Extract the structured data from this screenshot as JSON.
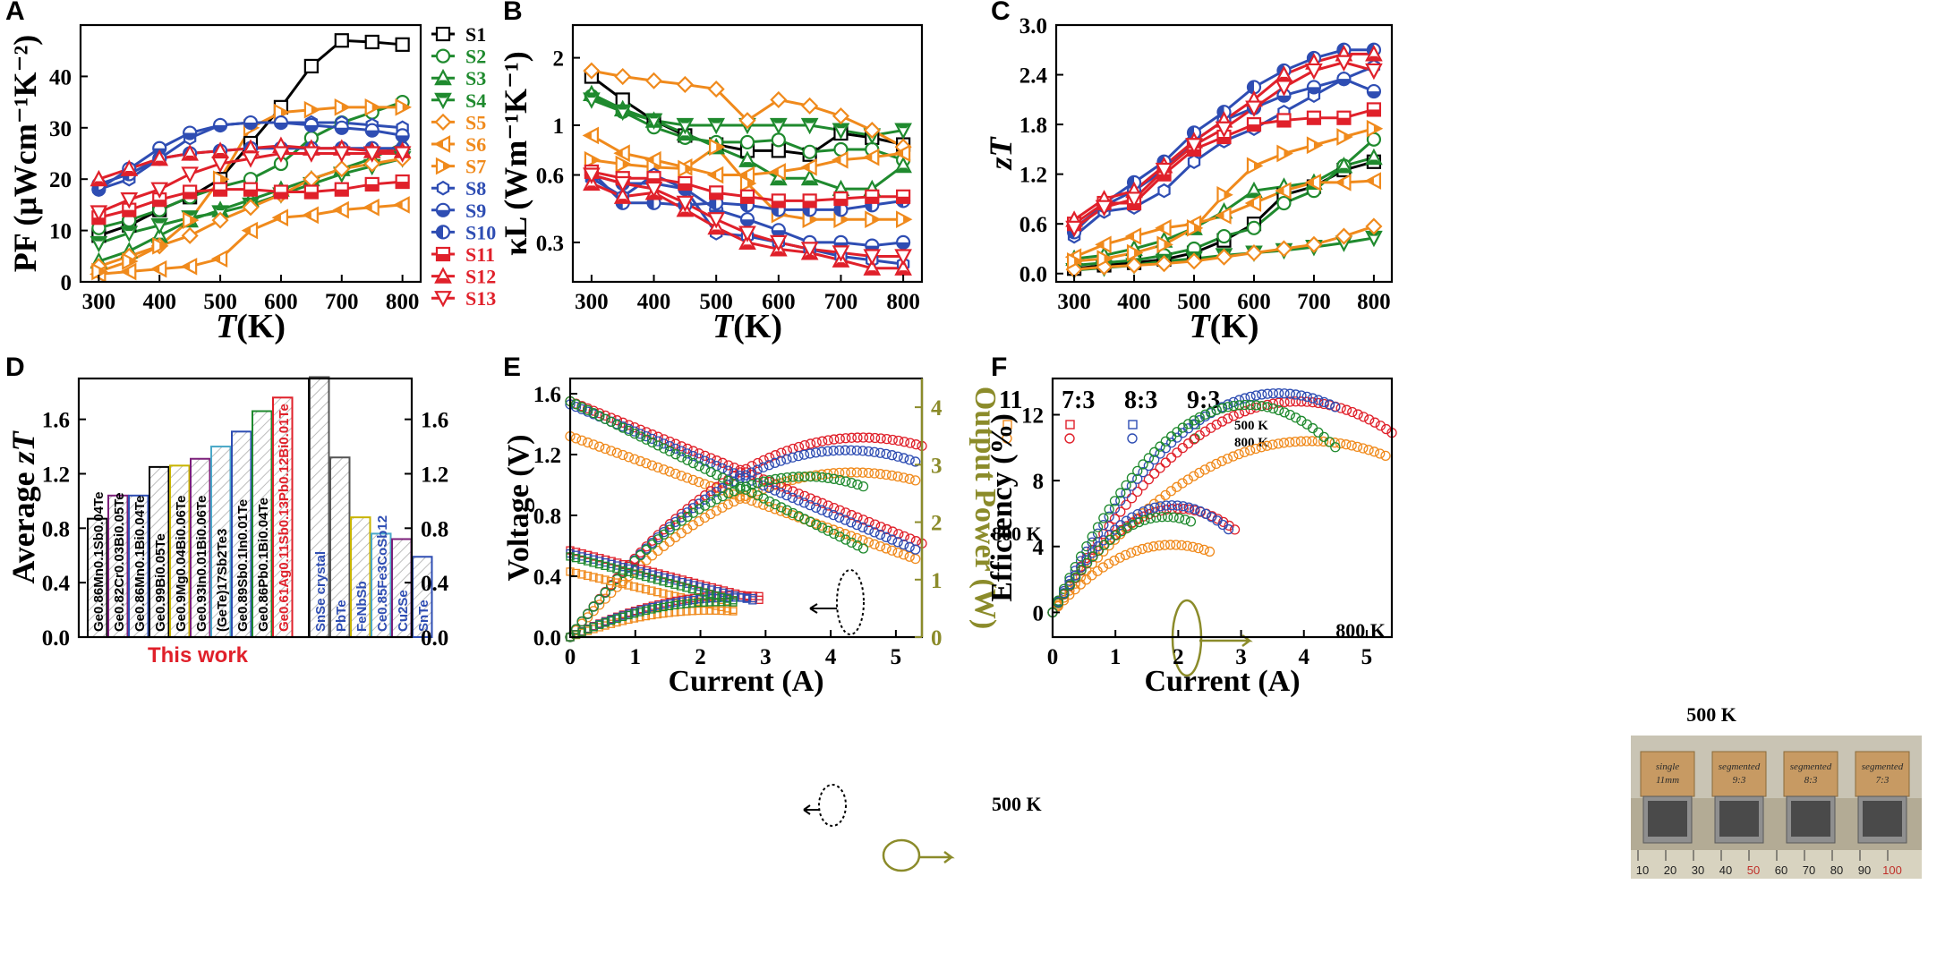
{
  "colors": {
    "S1": "#000000",
    "S2": "#1f8a2e",
    "S3": "#1f8a2e",
    "S4": "#1f8a2e",
    "S5": "#f08a1c",
    "S6": "#f08a1c",
    "S7": "#f08a1c",
    "S8": "#2e4db3",
    "S9": "#2e4db3",
    "S10": "#2e4db3",
    "S11": "#e0202a",
    "S12": "#e0202a",
    "S13": "#e0202a",
    "olive": "#8b8b2a",
    "gray": "#555555"
  },
  "marker_icons": {
    "S1": "square-open",
    "S2": "circle-open",
    "S3": "triangle-up-half",
    "S4": "triangle-down-half",
    "S5": "diamond-open",
    "S6": "triangle-left-half",
    "S7": "triangle-right-half",
    "S8": "hexagon-open",
    "S9": "circle-half",
    "S10": "circle-left-half",
    "S11": "square-half",
    "S12": "triangle-up-half",
    "S13": "triangle-down-open"
  },
  "chart_data": [
    {
      "panel": "A",
      "type": "line",
      "xlabel_italic": "T",
      "xlabel_unit": "(K)",
      "ylabel": "PF (μWcm⁻¹K⁻²)",
      "xlim": [
        270,
        830
      ],
      "ylim": [
        0,
        50
      ],
      "xticks": [
        300,
        400,
        500,
        600,
        700,
        800
      ],
      "yticks": [
        0,
        10,
        20,
        30,
        40
      ],
      "x": [
        300,
        350,
        400,
        450,
        500,
        550,
        600,
        650,
        700,
        750,
        800
      ],
      "legend": [
        "S1",
        "S2",
        "S3",
        "S4",
        "S5",
        "S6",
        "S7",
        "S8",
        "S9",
        "S10",
        "S11",
        "S12",
        "S13"
      ],
      "series": [
        {
          "name": "S1",
          "values": [
            9,
            11,
            14,
            16.5,
            20,
            27,
            34,
            42,
            47,
            46.7,
            46.2
          ]
        },
        {
          "name": "S2",
          "values": [
            10.5,
            12,
            14,
            16.5,
            18.5,
            20,
            23,
            28,
            31,
            33,
            35
          ]
        },
        {
          "name": "S3",
          "values": [
            4,
            6,
            9,
            12,
            14,
            16,
            18,
            20,
            22,
            24,
            27
          ]
        },
        {
          "name": "S4",
          "values": [
            7.5,
            9.5,
            11,
            12.5,
            13.5,
            15,
            17,
            19,
            21,
            22.5,
            24
          ]
        },
        {
          "name": "S5",
          "values": [
            3,
            5,
            7,
            9,
            12,
            14.5,
            17,
            20,
            22,
            23,
            24
          ]
        },
        {
          "name": "S6",
          "values": [
            1.5,
            2,
            2.5,
            3,
            4.5,
            10,
            12.5,
            13,
            14,
            14.5,
            15
          ]
        },
        {
          "name": "S7",
          "values": [
            2,
            4,
            7,
            12,
            20,
            30,
            33,
            33.5,
            34,
            34,
            34
          ]
        },
        {
          "name": "S8",
          "values": [
            18,
            20,
            24,
            28,
            30.5,
            31,
            31,
            31,
            31,
            30.5,
            30
          ]
        },
        {
          "name": "S9",
          "values": [
            18,
            22,
            26,
            29,
            30.5,
            31,
            31,
            30.5,
            30,
            29.5,
            28.5
          ]
        },
        {
          "name": "S10",
          "values": [
            19,
            21,
            24,
            25,
            25.5,
            26,
            26,
            26,
            26,
            26,
            26
          ]
        },
        {
          "name": "S11",
          "values": [
            12.5,
            14,
            16,
            17.5,
            18,
            18,
            17.5,
            17.5,
            18,
            19,
            19.5
          ]
        },
        {
          "name": "S12",
          "values": [
            20,
            22,
            24,
            25,
            25.5,
            26,
            26.5,
            26,
            26,
            25.5,
            25.5
          ]
        },
        {
          "name": "S13",
          "values": [
            13.5,
            16,
            18,
            21,
            23,
            24,
            25,
            25,
            25,
            25,
            25
          ]
        }
      ]
    },
    {
      "panel": "B",
      "type": "line",
      "xlabel_italic": "T",
      "xlabel_unit": "(K)",
      "ylabel": "κL (Wm⁻¹K⁻¹)",
      "yscale": "log",
      "xlim": [
        270,
        830
      ],
      "ylim": [
        0.2,
        2.8
      ],
      "xticks": [
        300,
        400,
        500,
        600,
        700,
        800
      ],
      "yticks": [
        0.3,
        0.6,
        1,
        2
      ],
      "x": [
        300,
        350,
        400,
        450,
        500,
        550,
        600,
        650,
        700,
        750,
        800
      ],
      "series": [
        {
          "name": "S1",
          "values": [
            1.65,
            1.3,
            1.05,
            0.9,
            0.82,
            0.77,
            0.77,
            0.74,
            0.92,
            0.88,
            0.82
          ]
        },
        {
          "name": "S2",
          "values": [
            1.35,
            1.15,
            0.98,
            0.88,
            0.84,
            0.84,
            0.86,
            0.76,
            0.78,
            0.78,
            0.7
          ]
        },
        {
          "name": "S3",
          "values": [
            1.38,
            1.18,
            1.05,
            0.92,
            0.8,
            0.7,
            0.58,
            0.58,
            0.52,
            0.52,
            0.66
          ]
        },
        {
          "name": "S4",
          "values": [
            1.3,
            1.15,
            1.05,
            1.0,
            1.0,
            1.0,
            1.0,
            1.0,
            0.95,
            0.9,
            0.95
          ]
        },
        {
          "name": "S5",
          "values": [
            1.75,
            1.65,
            1.58,
            1.52,
            1.45,
            1.05,
            1.3,
            1.22,
            1.1,
            0.95,
            0.8
          ]
        },
        {
          "name": "S6",
          "values": [
            0.9,
            0.75,
            0.7,
            0.65,
            0.6,
            0.6,
            0.62,
            0.65,
            0.7,
            0.72,
            0.75
          ]
        },
        {
          "name": "S7",
          "values": [
            0.7,
            0.67,
            0.65,
            0.64,
            0.8,
            0.55,
            0.4,
            0.38,
            0.38,
            0.38,
            0.38
          ]
        },
        {
          "name": "S8",
          "values": [
            0.58,
            0.48,
            0.6,
            0.52,
            0.33,
            0.32,
            0.3,
            0.28,
            0.26,
            0.25,
            0.24
          ]
        },
        {
          "name": "S9",
          "values": [
            0.6,
            0.55,
            0.55,
            0.52,
            0.42,
            0.38,
            0.34,
            0.3,
            0.3,
            0.29,
            0.3
          ]
        },
        {
          "name": "S10",
          "values": [
            0.62,
            0.45,
            0.45,
            0.44,
            0.45,
            0.44,
            0.42,
            0.42,
            0.42,
            0.44,
            0.46
          ]
        },
        {
          "name": "S11",
          "values": [
            0.62,
            0.58,
            0.58,
            0.55,
            0.5,
            0.48,
            0.46,
            0.46,
            0.47,
            0.48,
            0.48
          ]
        },
        {
          "name": "S12",
          "values": [
            0.55,
            0.48,
            0.5,
            0.42,
            0.35,
            0.3,
            0.28,
            0.27,
            0.25,
            0.23,
            0.23
          ]
        },
        {
          "name": "S13",
          "values": [
            0.6,
            0.55,
            0.52,
            0.45,
            0.38,
            0.33,
            0.3,
            0.28,
            0.27,
            0.26,
            0.26
          ]
        }
      ]
    },
    {
      "panel": "C",
      "type": "line",
      "xlabel_italic": "T",
      "xlabel_unit": "(K)",
      "ylabel": "zT",
      "xlim": [
        270,
        830
      ],
      "ylim": [
        -0.1,
        3.0
      ],
      "xticks": [
        300,
        400,
        500,
        600,
        700,
        800
      ],
      "yticks": [
        0.0,
        0.6,
        1.2,
        1.8,
        2.4,
        3.0
      ],
      "yticklabels": [
        "0.0",
        "0.6",
        "1.2",
        "1.8",
        "2.4",
        "3.0"
      ],
      "x": [
        300,
        350,
        400,
        450,
        500,
        550,
        600,
        650,
        700,
        750,
        800
      ],
      "series": [
        {
          "name": "S1",
          "values": [
            0.06,
            0.1,
            0.13,
            0.17,
            0.25,
            0.4,
            0.6,
            0.95,
            1.05,
            1.25,
            1.35
          ]
        },
        {
          "name": "S2",
          "values": [
            0.1,
            0.13,
            0.16,
            0.22,
            0.3,
            0.45,
            0.55,
            0.85,
            1.0,
            1.3,
            1.62
          ]
        },
        {
          "name": "S3",
          "values": [
            0.18,
            0.22,
            0.3,
            0.4,
            0.55,
            0.75,
            1.0,
            1.05,
            1.1,
            1.3,
            1.4
          ]
        },
        {
          "name": "S4",
          "values": [
            0.04,
            0.07,
            0.1,
            0.15,
            0.18,
            0.22,
            0.25,
            0.28,
            0.32,
            0.37,
            0.43
          ]
        },
        {
          "name": "S5",
          "values": [
            0.05,
            0.08,
            0.1,
            0.12,
            0.15,
            0.2,
            0.25,
            0.3,
            0.35,
            0.45,
            0.57
          ]
        },
        {
          "name": "S6",
          "values": [
            0.2,
            0.35,
            0.45,
            0.55,
            0.6,
            0.7,
            0.85,
            1.0,
            1.1,
            1.1,
            1.12
          ]
        },
        {
          "name": "S7",
          "values": [
            0.15,
            0.18,
            0.25,
            0.35,
            0.55,
            0.95,
            1.3,
            1.45,
            1.55,
            1.65,
            1.75
          ]
        },
        {
          "name": "S8",
          "values": [
            0.45,
            0.75,
            0.8,
            1.0,
            1.35,
            1.6,
            1.75,
            1.95,
            2.15,
            2.35,
            2.5
          ]
        },
        {
          "name": "S9",
          "values": [
            0.55,
            0.82,
            1.0,
            1.25,
            1.6,
            1.85,
            2.0,
            2.15,
            2.25,
            2.35,
            2.2
          ]
        },
        {
          "name": "S10",
          "values": [
            0.5,
            0.85,
            1.1,
            1.35,
            1.7,
            1.95,
            2.25,
            2.45,
            2.6,
            2.7,
            2.7
          ]
        },
        {
          "name": "S11",
          "values": [
            0.6,
            0.85,
            0.85,
            1.2,
            1.5,
            1.65,
            1.8,
            1.85,
            1.88,
            1.88,
            1.98
          ]
        },
        {
          "name": "S12",
          "values": [
            0.65,
            0.9,
            1.0,
            1.3,
            1.6,
            1.85,
            2.1,
            2.4,
            2.55,
            2.65,
            2.65
          ]
        },
        {
          "name": "S13",
          "values": [
            0.55,
            0.8,
            0.9,
            1.25,
            1.55,
            1.75,
            2.0,
            2.25,
            2.45,
            2.55,
            2.45
          ]
        }
      ]
    },
    {
      "panel": "D",
      "type": "bar",
      "ylabel": "Average zT",
      "ylim": [
        0,
        1.9
      ],
      "yticks": [
        0.0,
        0.4,
        0.8,
        1.2,
        1.6
      ],
      "yticklabels": [
        "0.0",
        "0.4",
        "0.8",
        "1.2",
        "1.6"
      ],
      "group_label": "This work",
      "categories": [
        "Ge0.86Mn0.1Sb0.04Te",
        "Ge0.82Cr0.03Bi0.05Te",
        "Ge0.86Mn0.1Bi0.04Te",
        "Ge0.99Bi0.05Te",
        "Ge0.9Mg0.04Bi0.06Te",
        "Ge0.93In0.01Bi0.06Te",
        "(GeTe)17Sb2Te3",
        "Ge0.89Sb0.1In0.01Te",
        "Ge0.86Pb0.1Bi0.04Te",
        "Ge0.61Ag0.11Sb0.13Pb0.12Bi0.01Te",
        "SnSe crystal",
        "PbTe",
        "FeNbSb",
        "Ce0.85Fe3CoSb12",
        "Cu2Se",
        "SnTe"
      ],
      "values": [
        0.87,
        1.04,
        1.04,
        1.25,
        1.26,
        1.31,
        1.4,
        1.51,
        1.66,
        1.76,
        1.91,
        1.32,
        0.88,
        0.76,
        0.72,
        0.59
      ],
      "bar_colors": [
        "#000000",
        "#7b1f7a",
        "#2e4db3",
        "#000000",
        "#c8b400",
        "#7b1f7a",
        "#4aa8c8",
        "#2e4db3",
        "#1f8a2e",
        "#e0202a",
        "#555555",
        "#555555",
        "#c8b400",
        "#4aa8c8",
        "#7b1f7a",
        "#2e4db3"
      ],
      "label_colors": [
        "#000000",
        "#000000",
        "#000000",
        "#000000",
        "#000000",
        "#000000",
        "#000000",
        "#000000",
        "#000000",
        "#e0202a",
        "#2e4db3",
        "#2e4db3",
        "#2e4db3",
        "#2e4db3",
        "#2e4db3",
        "#2e4db3"
      ]
    },
    {
      "panel": "E",
      "type": "scatter",
      "xlabel": "Current (A)",
      "ylabel": "Voltage (V)",
      "y2label": "Output Power (W)",
      "xlim": [
        0,
        5.4
      ],
      "ylim": [
        0,
        1.7
      ],
      "y2lim": [
        0,
        4.5
      ],
      "xticks": [
        0,
        1,
        2,
        3,
        4,
        5
      ],
      "yticks": [
        0.0,
        0.4,
        0.8,
        1.2,
        1.6
      ],
      "yticklabels": [
        "0.0",
        "0.4",
        "0.8",
        "1.2",
        "1.6"
      ],
      "y2ticks": [
        0,
        1,
        2,
        3,
        4
      ],
      "legend_header": [
        "11",
        "7:3",
        "8:3",
        "9:3"
      ],
      "legend_rows": [
        "500 K",
        "800 K"
      ],
      "annotations": [
        "800 K",
        "500 K"
      ],
      "series": [
        {
          "name": "11",
          "temp": "800 K",
          "Voc": 1.32,
          "R": 0.152,
          "Imax": 5.3
        },
        {
          "name": "7:3",
          "temp": "800 K",
          "Voc": 1.55,
          "R": 0.173,
          "Imax": 5.4
        },
        {
          "name": "8:3",
          "temp": "800 K",
          "Voc": 1.53,
          "R": 0.18,
          "Imax": 5.3
        },
        {
          "name": "9:3",
          "temp": "800 K",
          "Voc": 1.55,
          "R": 0.215,
          "Imax": 4.5
        },
        {
          "name": "11",
          "temp": "500 K",
          "Voc": 0.43,
          "R": 0.1,
          "Imax": 2.5
        },
        {
          "name": "7:3",
          "temp": "500 K",
          "Voc": 0.57,
          "R": 0.112,
          "Imax": 2.9
        },
        {
          "name": "8:3",
          "temp": "500 K",
          "Voc": 0.55,
          "R": 0.11,
          "Imax": 2.8
        },
        {
          "name": "9:3",
          "temp": "500 K",
          "Voc": 0.53,
          "R": 0.115,
          "Imax": 2.5
        }
      ]
    },
    {
      "panel": "F",
      "type": "scatter",
      "xlabel": "Current (A)",
      "ylabel": "Efficiency (%)",
      "xlim": [
        0,
        5.4
      ],
      "ylim": [
        -1.5,
        14.2
      ],
      "xticks": [
        0,
        1,
        2,
        3,
        4,
        5
      ],
      "yticks": [
        0,
        4,
        8,
        12
      ],
      "annotations": [
        "800 K",
        "500 K"
      ],
      "series": [
        {
          "name": "11",
          "temp": "800 K",
          "peak": 10.4,
          "Ipeak": 4.1,
          "Imax": 5.3
        },
        {
          "name": "7:3",
          "temp": "800 K",
          "peak": 12.8,
          "Ipeak": 3.9,
          "Imax": 5.4
        },
        {
          "name": "8:3",
          "temp": "800 K",
          "peak": 13.3,
          "Ipeak": 3.6,
          "Imax": 4.5
        },
        {
          "name": "9:3",
          "temp": "800 K",
          "peak": 12.6,
          "Ipeak": 3.1,
          "Imax": 4.5
        },
        {
          "name": "11",
          "temp": "500 K",
          "peak": 4.1,
          "Ipeak": 1.9,
          "Imax": 2.5
        },
        {
          "name": "7:3",
          "temp": "500 K",
          "peak": 6.3,
          "Ipeak": 2.0,
          "Imax": 2.9
        },
        {
          "name": "8:3",
          "temp": "500 K",
          "peak": 6.5,
          "Ipeak": 1.9,
          "Imax": 2.8
        },
        {
          "name": "9:3",
          "temp": "500 K",
          "peak": 5.8,
          "Ipeak": 1.8,
          "Imax": 2.2
        }
      ],
      "inset_labels": [
        "single\n11mm",
        "segmented\n9:3",
        "segmented\n8:3",
        "segmented\n7:3"
      ],
      "ruler_labels": [
        "10",
        "20",
        "30",
        "40",
        "50",
        "60",
        "70",
        "80",
        "90",
        "100"
      ]
    }
  ],
  "panel_letters": [
    "A",
    "B",
    "C",
    "D",
    "E",
    "F"
  ],
  "series_colors_E": {
    "11": "#f08a1c",
    "7:3": "#e0202a",
    "8:3": "#2e4db3",
    "9:3": "#1f8a2e"
  }
}
